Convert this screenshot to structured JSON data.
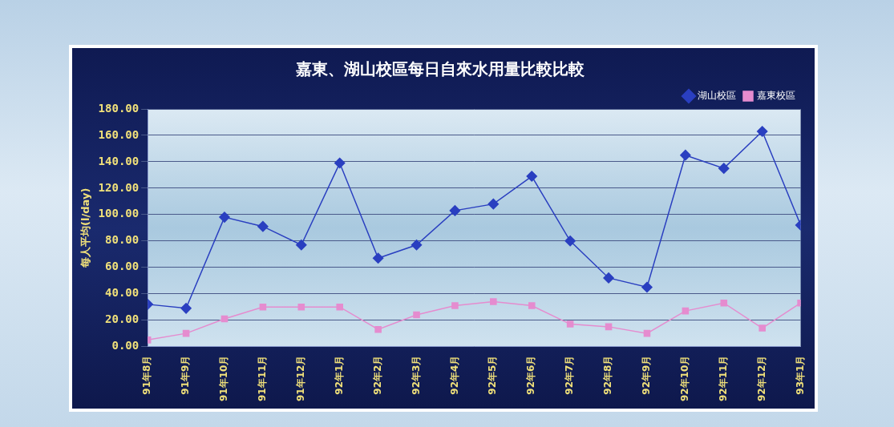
{
  "chart_data": {
    "type": "line",
    "title": "嘉東、湖山校區每日自來水用量比較比較",
    "y_label": "每人平均(l/day)",
    "categories": [
      "91年8月",
      "91年9月",
      "91年10月",
      "91年11月",
      "91年12月",
      "92年1月",
      "92年2月",
      "92年3月",
      "92年4月",
      "92年5月",
      "92年6月",
      "92年7月",
      "92年8月",
      "92年9月",
      "92年10月",
      "92年11月",
      "92年12月",
      "93年1月"
    ],
    "series": [
      {
        "name": "湖山校區",
        "color": "#2a3fc0",
        "marker": "diamond",
        "values": [
          32,
          29,
          98,
          91,
          77,
          139,
          67,
          77,
          103,
          108,
          129,
          80,
          52,
          45,
          145,
          135,
          163,
          92
        ]
      },
      {
        "name": "嘉東校區",
        "color": "#e58ccf",
        "marker": "square",
        "values": [
          5,
          10,
          21,
          30,
          30,
          30,
          13,
          24,
          31,
          34,
          31,
          17,
          15,
          10,
          27,
          33,
          14,
          33
        ]
      }
    ],
    "ylim": [
      0,
      180
    ],
    "yticks": [
      {
        "value": 0,
        "label": "0.00"
      },
      {
        "value": 20,
        "label": "20.00"
      },
      {
        "value": 40,
        "label": "40.00"
      },
      {
        "value": 60,
        "label": "60.00"
      },
      {
        "value": 80,
        "label": "80.00"
      },
      {
        "value": 100,
        "label": "100.00"
      },
      {
        "value": 120,
        "label": "120.00"
      },
      {
        "value": 140,
        "label": "140.00"
      },
      {
        "value": 160,
        "label": "160.00"
      },
      {
        "value": 180,
        "label": "180.00"
      }
    ],
    "grid": true,
    "legend": "top-right"
  }
}
